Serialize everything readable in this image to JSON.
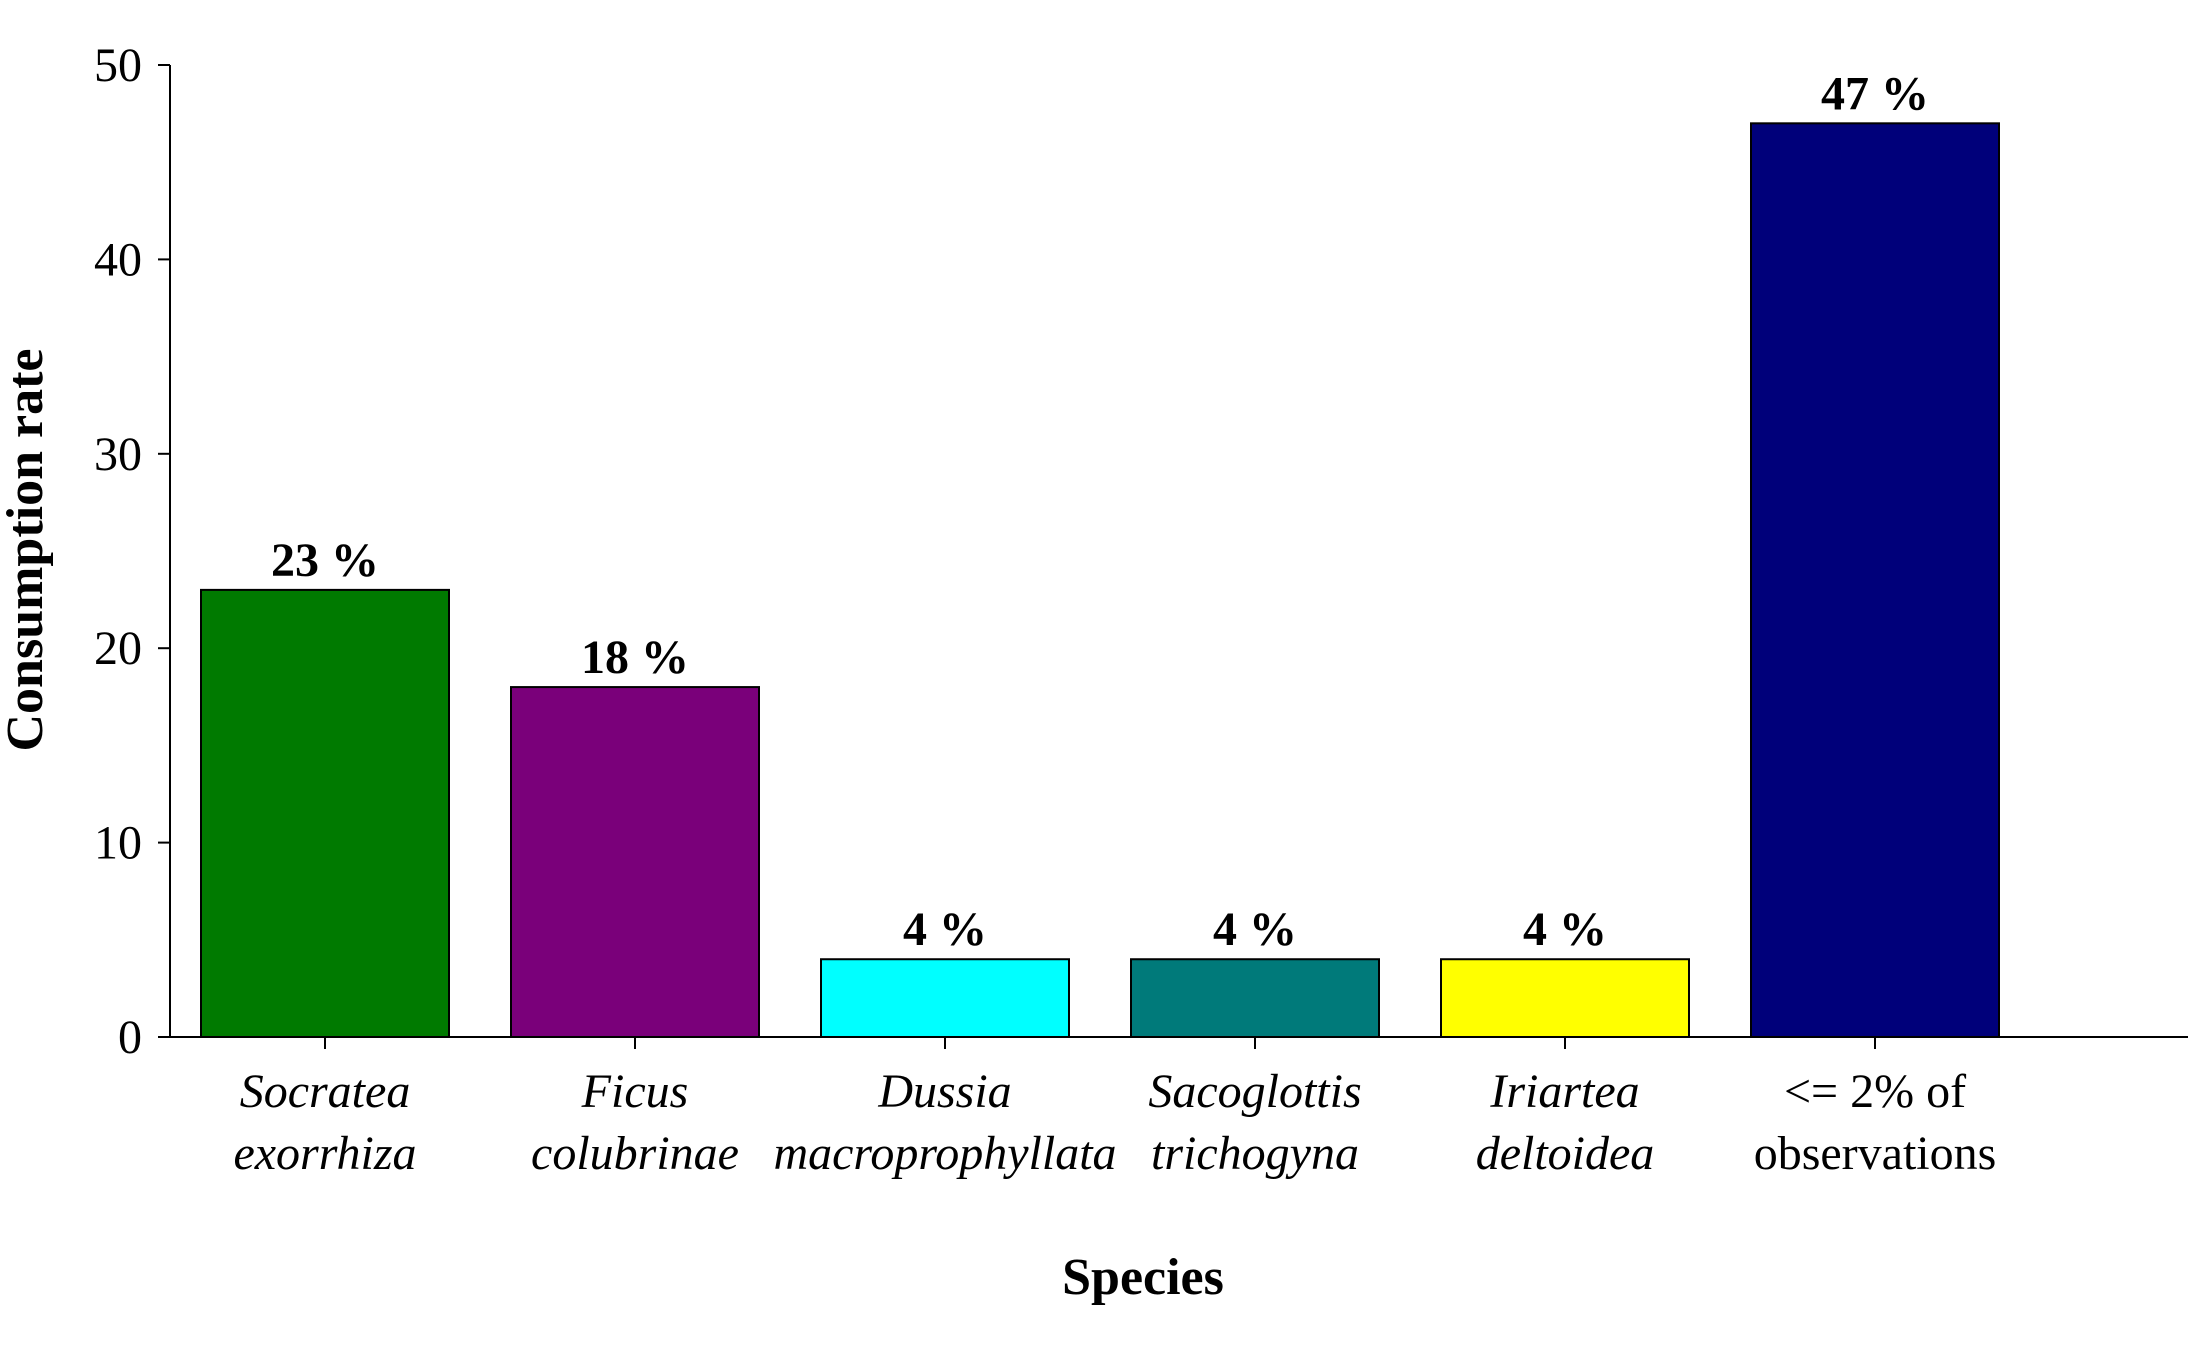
{
  "chart_data": {
    "type": "bar",
    "categories": [
      {
        "lines": [
          "Socratea",
          "exorrhiza"
        ],
        "italic": true
      },
      {
        "lines": [
          "Ficus",
          "colubrinae"
        ],
        "italic": true
      },
      {
        "lines": [
          "Dussia",
          "macroprophyllata"
        ],
        "italic": true
      },
      {
        "lines": [
          "Sacoglottis",
          "trichogyna"
        ],
        "italic": true
      },
      {
        "lines": [
          "Iriartea",
          "deltoidea"
        ],
        "italic": true
      },
      {
        "lines": [
          "<= 2% of",
          "observations"
        ],
        "italic": false
      }
    ],
    "values": [
      23,
      18,
      4,
      4,
      4,
      47
    ],
    "data_labels": [
      "23 %",
      "18 %",
      "4 %",
      "4 %",
      "4 %",
      "47 %"
    ],
    "colors": [
      "#007A00",
      "#7A007A",
      "#00FFFF",
      "#007A7A",
      "#FFFF00",
      "#00007A"
    ],
    "xlabel": "Species",
    "ylabel": "Consumption rate",
    "ylim": [
      0,
      50
    ],
    "yticks": [
      0,
      10,
      20,
      30,
      40,
      50
    ],
    "grid": false,
    "legend": "none"
  }
}
